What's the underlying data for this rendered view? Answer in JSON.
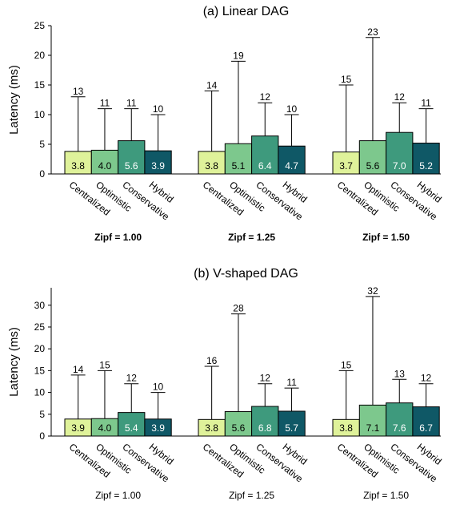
{
  "chart_data": [
    {
      "type": "bar",
      "title": "(a) Linear DAG",
      "ylabel": "Latency (ms)",
      "ylim": [
        0,
        25
      ],
      "yticks": [
        0,
        5,
        10,
        15,
        20,
        25
      ],
      "groups": [
        "Zipf = 1.00",
        "Zipf = 1.25",
        "Zipf = 1.50"
      ],
      "categories": [
        "Centralized",
        "Optimistic",
        "Conservative",
        "Hybrid"
      ],
      "series_colors": [
        "#dff29a",
        "#7dc88d",
        "#3e9a7d",
        "#0f5866"
      ],
      "values": [
        [
          3.8,
          4.0,
          5.6,
          3.9
        ],
        [
          3.8,
          5.1,
          6.4,
          4.7
        ],
        [
          3.7,
          5.6,
          7.0,
          5.2
        ]
      ],
      "value_labels": [
        [
          "3.8",
          "4.0",
          "5.6",
          "3.9"
        ],
        [
          "3.8",
          "5.1",
          "6.4",
          "4.7"
        ],
        [
          "3.7",
          "5.6",
          "7.0",
          "5.2"
        ]
      ],
      "max_values": [
        [
          13,
          11,
          11,
          10
        ],
        [
          14,
          19,
          12,
          10
        ],
        [
          15,
          23,
          12,
          11
        ]
      ],
      "group_label_bold": true
    },
    {
      "type": "bar",
      "title": "(b) V-shaped DAG",
      "ylabel": "Latency (ms)",
      "ylim": [
        0,
        34
      ],
      "yticks": [
        0,
        5,
        10,
        15,
        20,
        25,
        30
      ],
      "groups": [
        "Zipf = 1.00",
        "Zipf = 1.25",
        "Zipf = 1.50"
      ],
      "categories": [
        "Centralized",
        "Optimistic",
        "Conservative",
        "Hybrid"
      ],
      "series_colors": [
        "#dff29a",
        "#7dc88d",
        "#3e9a7d",
        "#0f5866"
      ],
      "values": [
        [
          3.9,
          4.0,
          5.4,
          3.9
        ],
        [
          3.8,
          5.6,
          6.8,
          5.7
        ],
        [
          3.8,
          7.1,
          7.6,
          6.7
        ]
      ],
      "value_labels": [
        [
          "3.9",
          "4.0",
          "5.4",
          "3.9"
        ],
        [
          "3.8",
          "5.6",
          "6.8",
          "5.7"
        ],
        [
          "3.8",
          "7.1",
          "7.6",
          "6.7"
        ]
      ],
      "max_values": [
        [
          14,
          15,
          12,
          10
        ],
        [
          16,
          28,
          12,
          11
        ],
        [
          15,
          32,
          13,
          12
        ]
      ],
      "group_label_bold": false
    }
  ]
}
